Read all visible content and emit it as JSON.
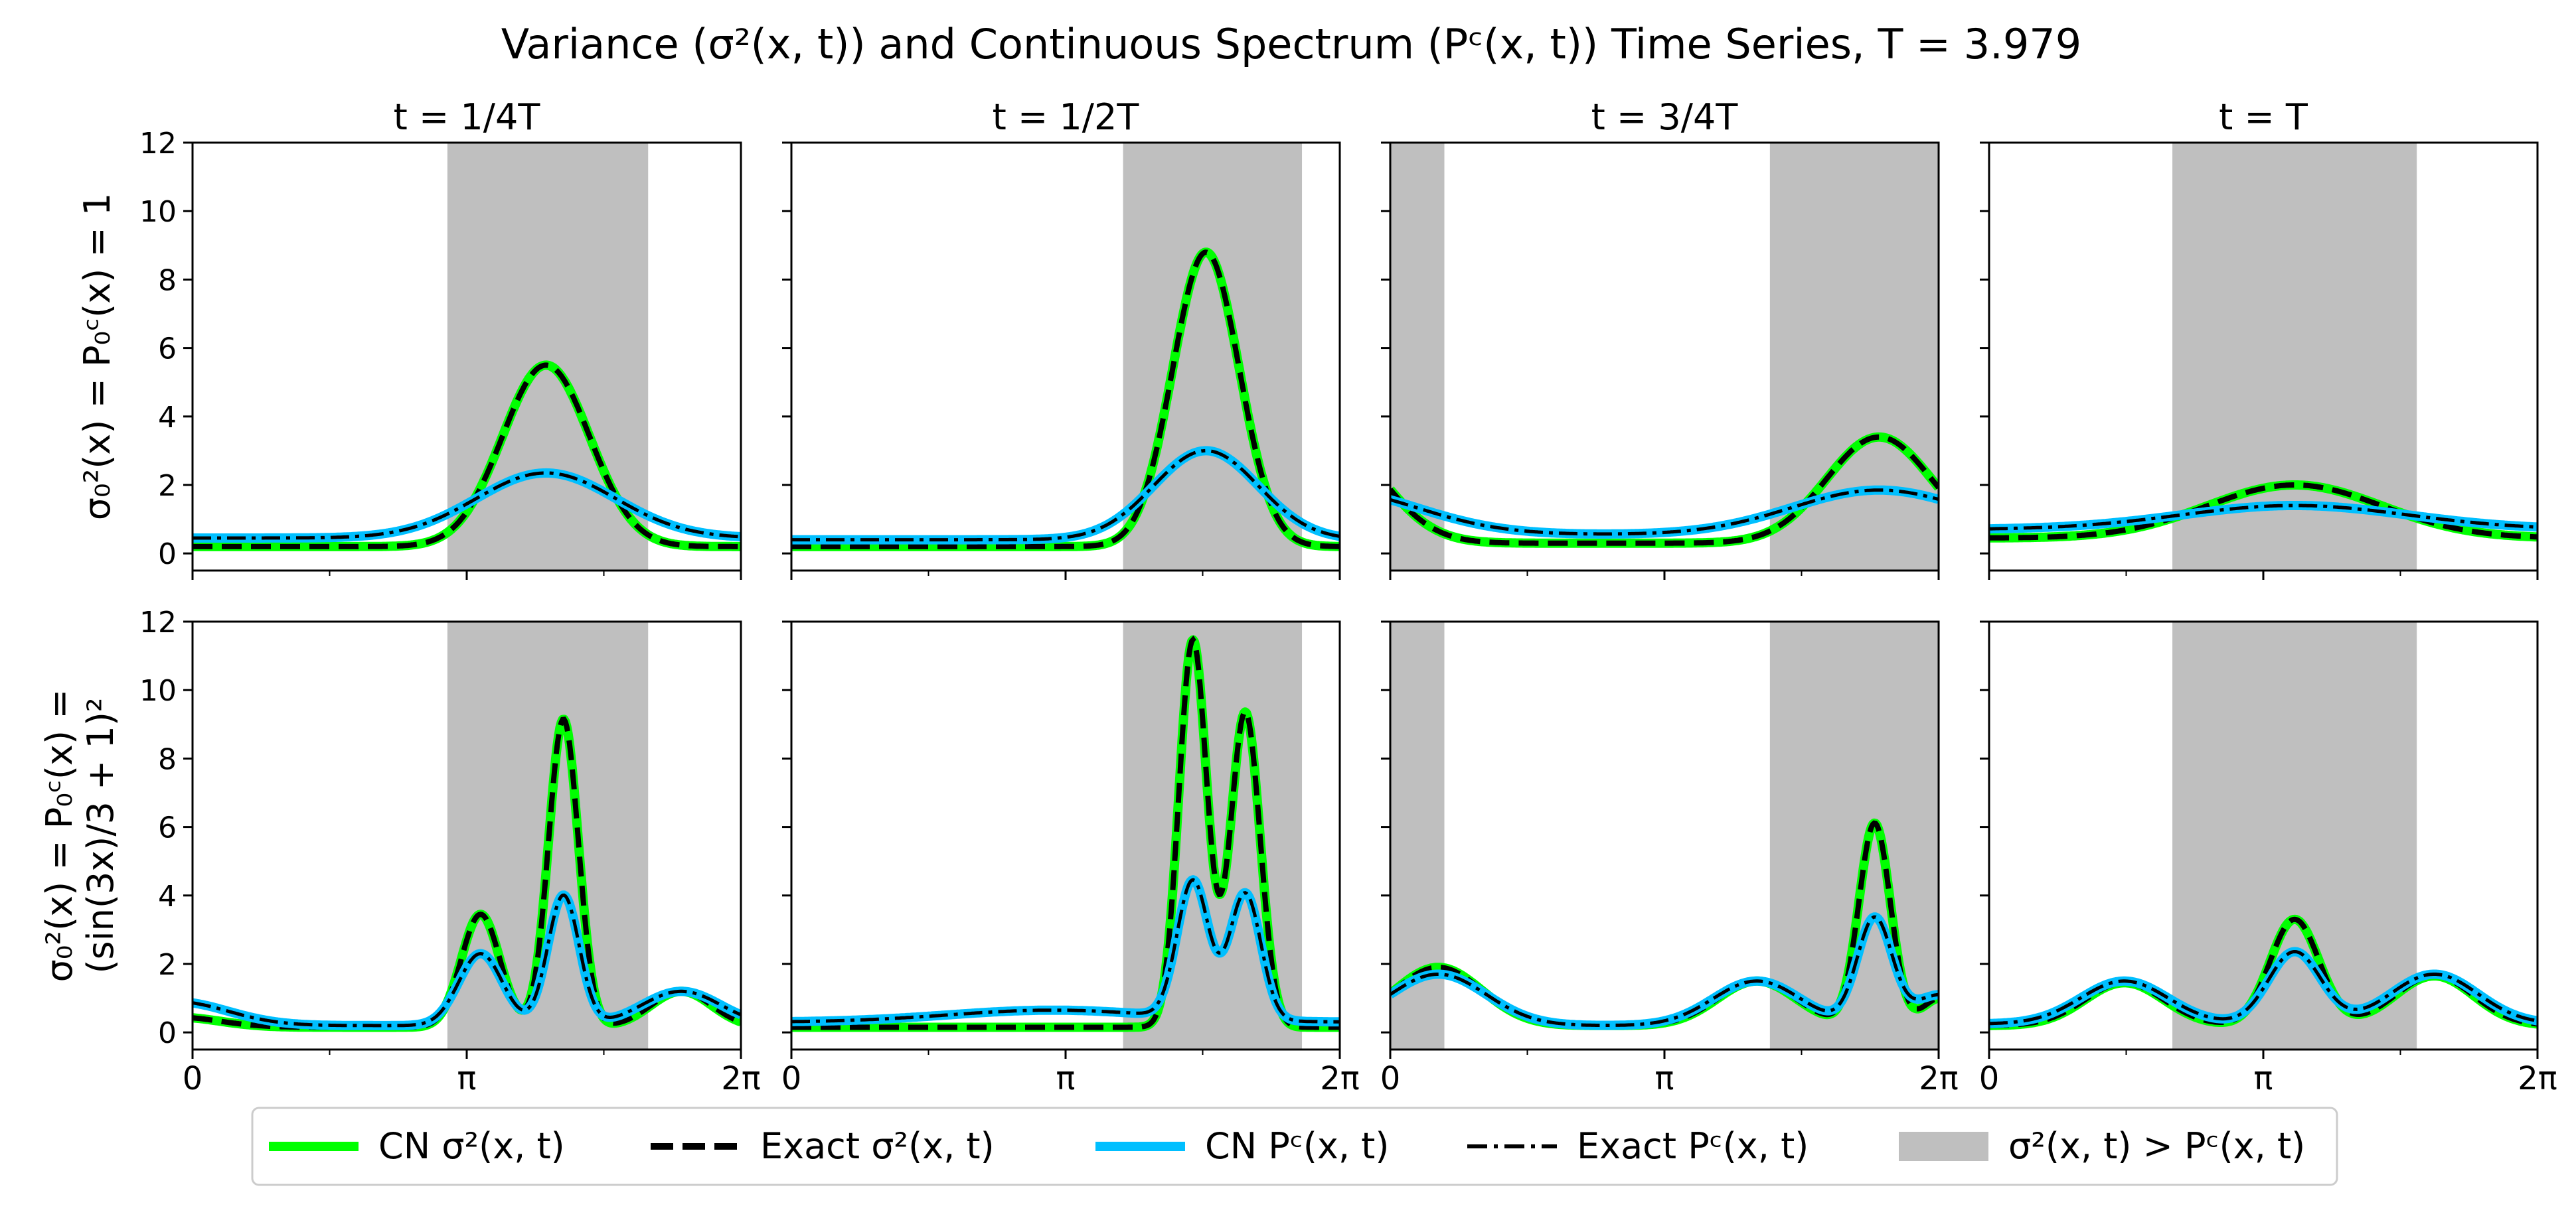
{
  "title": "Variance (σ²(x, t)) and Continuous Spectrum (Pᶜ(x, t)) Time Series, T = 3.979",
  "column_titles": [
    "t = 1/4T",
    "t = 1/2T",
    "t = 3/4T",
    "t = T"
  ],
  "row_labels": [
    [
      "σ₀²(x) = P₀ᶜ(x) = 1"
    ],
    [
      "σ₀²(x) = P₀ᶜ(x) =",
      "(sin(3x)/3 + 1)²"
    ]
  ],
  "x_tick_labels": [
    "0",
    "π",
    "2π"
  ],
  "y_tick_labels": [
    "0",
    "2",
    "4",
    "6",
    "8",
    "10",
    "12"
  ],
  "legend": [
    {
      "label": "CN σ²(x, t)",
      "style": "solid",
      "color": "#00ff00"
    },
    {
      "label": "Exact σ²(x, t)",
      "style": "dashed",
      "color": "#000000"
    },
    {
      "label": "CN Pᶜ(x, t)",
      "style": "solid",
      "color": "#00bfff"
    },
    {
      "label": "Exact Pᶜ(x, t)",
      "style": "dashdot",
      "color": "#000000"
    },
    {
      "label": "σ²(x, t) > Pᶜ(x, t)",
      "style": "patch",
      "color": "#bfbfbf"
    }
  ],
  "colors": {
    "cn_variance": "#00ff00",
    "cn_spectrum": "#00bfff",
    "exact": "#000000",
    "shade": "#bfbfbf"
  },
  "chart_data": {
    "type": "line",
    "grid": false,
    "xlim": [
      0,
      6.2832
    ],
    "ylim": [
      -0.5,
      12
    ],
    "x_ticks": [
      0,
      3.1416,
      6.2832
    ],
    "x_minor_ticks": [
      1.5708,
      4.7124
    ],
    "y_ticks": [
      0,
      2,
      4,
      6,
      8,
      10,
      12
    ],
    "panels": [
      {
        "row": 0,
        "col": 0,
        "title": "t = 1/4T",
        "shaded_regions": [
          [
            2.92,
            5.22
          ]
        ],
        "variance": {
          "baseline": 0.2,
          "peaks": [
            {
              "center": 4.05,
              "amp": 5.3,
              "width": 0.5
            }
          ]
        },
        "spectrum": {
          "baseline": 0.45,
          "peaks": [
            {
              "center": 4.05,
              "amp": 1.9,
              "width": 0.8
            }
          ]
        }
      },
      {
        "row": 0,
        "col": 1,
        "title": "t = 1/2T",
        "shaded_regions": [
          [
            3.8,
            5.85
          ]
        ],
        "variance": {
          "baseline": 0.2,
          "peaks": [
            {
              "center": 4.75,
              "amp": 8.6,
              "width": 0.38
            }
          ]
        },
        "spectrum": {
          "baseline": 0.4,
          "peaks": [
            {
              "center": 4.75,
              "amp": 2.6,
              "width": 0.6
            }
          ]
        }
      },
      {
        "row": 0,
        "col": 2,
        "title": "t = 3/4T",
        "shaded_regions": [
          [
            0,
            0.62
          ],
          [
            4.35,
            6.2832
          ]
        ],
        "variance": {
          "baseline": 0.3,
          "peaks": [
            {
              "center": 5.6,
              "amp": 3.1,
              "width": 0.6
            },
            {
              "center": -0.7,
              "amp": 3.1,
              "width": 0.6
            }
          ]
        },
        "spectrum": {
          "baseline": 0.55,
          "peaks": [
            {
              "center": 5.6,
              "amp": 1.3,
              "width": 1.0
            },
            {
              "center": -0.7,
              "amp": 1.3,
              "width": 1.0
            }
          ]
        }
      },
      {
        "row": 0,
        "col": 3,
        "title": "t = T",
        "shaded_regions": [
          [
            2.1,
            4.9
          ]
        ],
        "variance": {
          "baseline": 0.45,
          "peaks": [
            {
              "center": 3.5,
              "amp": 1.55,
              "width": 1.0
            }
          ]
        },
        "spectrum": {
          "baseline": 0.7,
          "peaks": [
            {
              "center": 3.5,
              "amp": 0.7,
              "width": 1.3
            }
          ]
        }
      },
      {
        "row": 1,
        "col": 0,
        "title": "t = 1/4T",
        "shaded_regions": [
          [
            2.92,
            5.22
          ]
        ],
        "variance": {
          "baseline": 0.15,
          "peaks": [
            {
              "center": 3.3,
              "amp": 3.3,
              "width": 0.22
            },
            {
              "center": 4.25,
              "amp": 9.0,
              "width": 0.17
            },
            {
              "center": 5.6,
              "amp": 1.05,
              "width": 0.35
            },
            {
              "center": -0.2,
              "amp": 0.3,
              "width": 0.5
            }
          ]
        },
        "spectrum": {
          "baseline": 0.2,
          "peaks": [
            {
              "center": 3.3,
              "amp": 2.1,
              "width": 0.25
            },
            {
              "center": 4.25,
              "amp": 3.8,
              "width": 0.18
            },
            {
              "center": 5.6,
              "amp": 1.0,
              "width": 0.45
            },
            {
              "center": -0.2,
              "amp": 0.7,
              "width": 0.6
            }
          ]
        }
      },
      {
        "row": 1,
        "col": 1,
        "title": "t = 1/2T",
        "shaded_regions": [
          [
            3.8,
            5.85
          ]
        ],
        "variance": {
          "baseline": 0.15,
          "peaks": [
            {
              "center": 4.6,
              "amp": 11.3,
              "width": 0.16
            },
            {
              "center": 5.2,
              "amp": 9.2,
              "width": 0.17
            }
          ]
        },
        "spectrum": {
          "baseline": 0.3,
          "peaks": [
            {
              "center": 4.6,
              "amp": 4.0,
              "width": 0.18
            },
            {
              "center": 5.2,
              "amp": 3.7,
              "width": 0.18
            },
            {
              "center": 3.0,
              "amp": 0.35,
              "width": 1.2
            }
          ]
        }
      },
      {
        "row": 1,
        "col": 2,
        "title": "t = 3/4T",
        "shaded_regions": [
          [
            0,
            0.62
          ],
          [
            4.35,
            6.2832
          ]
        ],
        "variance": {
          "baseline": 0.2,
          "peaks": [
            {
              "center": 0.55,
              "amp": 1.7,
              "width": 0.5
            },
            {
              "center": 4.2,
              "amp": 1.3,
              "width": 0.45
            },
            {
              "center": 5.55,
              "amp": 5.9,
              "width": 0.18
            },
            {
              "center": 6.3,
              "amp": 0.8,
              "width": 0.2
            }
          ]
        },
        "spectrum": {
          "baseline": 0.2,
          "peaks": [
            {
              "center": 0.55,
              "amp": 1.5,
              "width": 0.55
            },
            {
              "center": 4.2,
              "amp": 1.3,
              "width": 0.5
            },
            {
              "center": 5.55,
              "amp": 3.1,
              "width": 0.2
            },
            {
              "center": 6.3,
              "amp": 0.9,
              "width": 0.3
            }
          ]
        }
      },
      {
        "row": 1,
        "col": 3,
        "title": "t = T",
        "shaded_regions": [
          [
            2.1,
            4.9
          ]
        ],
        "variance": {
          "baseline": 0.2,
          "peaks": [
            {
              "center": 1.55,
              "amp": 1.25,
              "width": 0.45
            },
            {
              "center": 3.5,
              "amp": 3.1,
              "width": 0.28
            },
            {
              "center": 5.1,
              "amp": 1.45,
              "width": 0.45
            }
          ]
        },
        "spectrum": {
          "baseline": 0.25,
          "peaks": [
            {
              "center": 1.55,
              "amp": 1.25,
              "width": 0.5
            },
            {
              "center": 3.5,
              "amp": 2.1,
              "width": 0.3
            },
            {
              "center": 5.1,
              "amp": 1.45,
              "width": 0.5
            }
          ]
        }
      }
    ]
  }
}
